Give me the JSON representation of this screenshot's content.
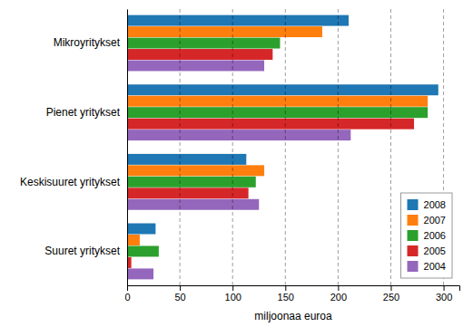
{
  "chart_data": {
    "type": "bar",
    "orientation": "horizontal",
    "categories": [
      "Mikroyritykset",
      "Pienet yritykset",
      "Keskisuuret yritykset",
      "Suuret yritykset"
    ],
    "series": [
      {
        "name": "2008",
        "values": [
          210,
          295,
          113,
          27
        ]
      },
      {
        "name": "2007",
        "values": [
          185,
          285,
          130,
          12
        ]
      },
      {
        "name": "2006",
        "values": [
          145,
          285,
          122,
          30
        ]
      },
      {
        "name": "2005",
        "values": [
          138,
          272,
          115,
          4
        ]
      },
      {
        "name": "2004",
        "values": [
          130,
          212,
          125,
          25
        ]
      }
    ],
    "xlabel": "miljoonaa euroa",
    "xlim": [
      0,
      315
    ],
    "xticks": [
      0,
      50,
      100,
      150,
      200,
      250,
      300
    ],
    "grid": true,
    "legend": "lower right"
  }
}
